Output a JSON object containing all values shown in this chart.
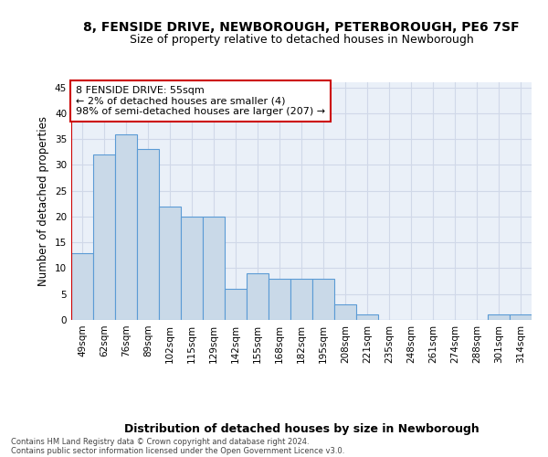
{
  "title1": "8, FENSIDE DRIVE, NEWBOROUGH, PETERBOROUGH, PE6 7SF",
  "title2": "Size of property relative to detached houses in Newborough",
  "xlabel": "Distribution of detached houses by size in Newborough",
  "ylabel": "Number of detached properties",
  "categories": [
    "49sqm",
    "62sqm",
    "76sqm",
    "89sqm",
    "102sqm",
    "115sqm",
    "129sqm",
    "142sqm",
    "155sqm",
    "168sqm",
    "182sqm",
    "195sqm",
    "208sqm",
    "221sqm",
    "235sqm",
    "248sqm",
    "261sqm",
    "274sqm",
    "288sqm",
    "301sqm",
    "314sqm"
  ],
  "values": [
    13,
    32,
    36,
    33,
    22,
    20,
    20,
    6,
    9,
    8,
    8,
    8,
    3,
    1,
    0,
    0,
    0,
    0,
    0,
    1,
    1
  ],
  "bar_facecolor": "#c9d9e8",
  "bar_edgecolor": "#5b9bd5",
  "annotation_box_edgecolor": "#cc0000",
  "annotation_box_facecolor": "#ffffff",
  "annotation_line1": "8 FENSIDE DRIVE: 55sqm",
  "annotation_line2": "← 2% of detached houses are smaller (4)",
  "annotation_line3": "98% of semi-detached houses are larger (207) →",
  "ylim": [
    0,
    46
  ],
  "yticks": [
    0,
    5,
    10,
    15,
    20,
    25,
    30,
    35,
    40,
    45
  ],
  "grid_color": "#d0d8e8",
  "plot_bg_color": "#eaf0f8",
  "footer1": "Contains HM Land Registry data © Crown copyright and database right 2024.",
  "footer2": "Contains public sector information licensed under the Open Government Licence v3.0.",
  "title_fontsize": 10,
  "subtitle_fontsize": 9,
  "tick_fontsize": 7.5,
  "ylabel_fontsize": 8.5,
  "xlabel_fontsize": 9,
  "annotation_fontsize": 8,
  "footer_fontsize": 6
}
